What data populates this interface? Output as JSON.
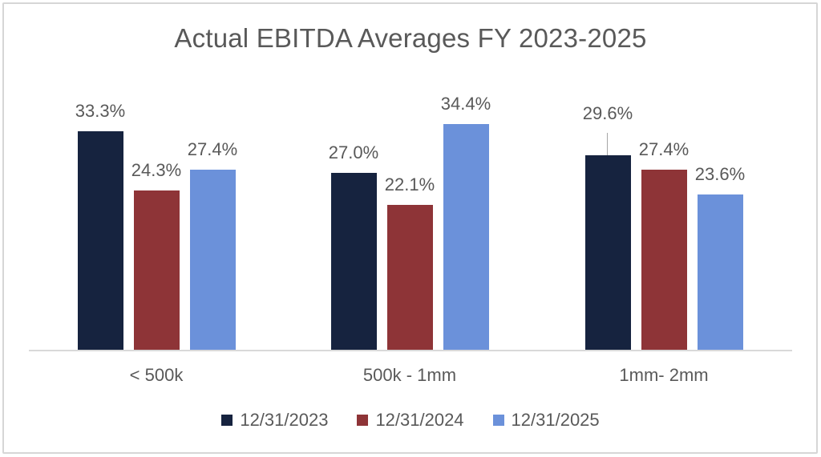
{
  "chart_data": {
    "type": "bar",
    "title": "Actual EBITDA Averages FY 2023-2025",
    "categories": [
      "< 500k",
      "500k - 1mm",
      "1mm- 2mm"
    ],
    "series": [
      {
        "name": "12/31/2023",
        "color": "#16233f",
        "values": [
          33.3,
          27.0,
          29.6
        ],
        "labels": [
          "33.3%",
          "27.0%",
          "29.6%"
        ]
      },
      {
        "name": "12/31/2024",
        "color": "#8e3437",
        "values": [
          24.3,
          22.1,
          27.4
        ],
        "labels": [
          "24.3%",
          "22.1%",
          "27.4%"
        ]
      },
      {
        "name": "12/31/2025",
        "color": "#6b91da",
        "values": [
          27.4,
          34.4,
          23.6
        ],
        "labels": [
          "27.4%",
          "34.4%",
          "23.6%"
        ]
      }
    ],
    "value_format": "0.0%",
    "ylim": [
      0,
      40
    ],
    "gridlines": false,
    "y_axis_visible": false,
    "legend_position": "bottom",
    "annotations": [
      {
        "type": "leader-line",
        "series": "12/31/2023",
        "category": "1mm- 2mm",
        "label": "29.6%"
      }
    ]
  },
  "colors": {
    "text_gray": "#595959",
    "axis_line": "#d9d9d9",
    "frame_border": "#d6d6d6",
    "leader_line": "#a6a6a6",
    "background": "#ffffff"
  }
}
